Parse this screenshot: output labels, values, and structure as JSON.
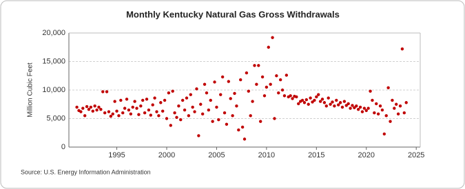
{
  "chart_data": {
    "type": "scatter",
    "title": "Monthly Kentucky Natural Gas Gross Withdrawals",
    "y_label": "Million Cubic Feet",
    "source": "Source: U.S. Energy Information Administration",
    "color": "#c00000",
    "grid": true,
    "xlim": [
      1990.2,
      2025.4
    ],
    "xticks": [
      1995,
      2000,
      2005,
      2010,
      2015,
      2020,
      2025
    ],
    "ylim": [
      0,
      20000
    ],
    "yticks": [
      0,
      {
        "value": 5000,
        "label": "5,000"
      },
      {
        "value": 10000,
        "label": "10,000"
      },
      {
        "value": 15000,
        "label": "15,000"
      },
      {
        "value": 20000,
        "label": "20,000"
      }
    ],
    "x": [
      1991.0,
      1991.2,
      1991.4,
      1991.6,
      1991.8,
      1992.0,
      1992.2,
      1992.4,
      1992.6,
      1992.8,
      1993.0,
      1993.2,
      1993.4,
      1993.6,
      1993.8,
      1994.0,
      1994.2,
      1994.4,
      1994.6,
      1994.8,
      1995.0,
      1995.2,
      1995.4,
      1995.6,
      1995.8,
      1996.0,
      1996.2,
      1996.4,
      1996.6,
      1996.8,
      1997.0,
      1997.2,
      1997.4,
      1997.6,
      1997.8,
      1998.0,
      1998.2,
      1998.4,
      1998.6,
      1998.8,
      1999.0,
      1999.2,
      1999.4,
      1999.6,
      1999.8,
      2000.0,
      2000.2,
      2000.4,
      2000.6,
      2000.8,
      2001.0,
      2001.2,
      2001.4,
      2001.6,
      2001.8,
      2002.0,
      2002.2,
      2002.4,
      2002.6,
      2002.8,
      2003.0,
      2003.2,
      2003.4,
      2003.6,
      2003.8,
      2004.0,
      2004.2,
      2004.4,
      2004.6,
      2004.8,
      2005.0,
      2005.2,
      2005.4,
      2005.6,
      2005.8,
      2006.0,
      2006.2,
      2006.4,
      2006.6,
      2006.8,
      2007.0,
      2007.2,
      2007.4,
      2007.6,
      2007.8,
      2008.0,
      2008.2,
      2008.4,
      2008.6,
      2008.8,
      2009.0,
      2009.2,
      2009.4,
      2009.6,
      2009.8,
      2010.0,
      2010.2,
      2010.4,
      2010.6,
      2010.8,
      2011.0,
      2011.2,
      2011.4,
      2011.6,
      2011.8,
      2012.0,
      2012.2,
      2012.4,
      2012.6,
      2012.8,
      2013.0,
      2013.2,
      2013.4,
      2013.6,
      2013.8,
      2014.0,
      2014.2,
      2014.4,
      2014.6,
      2014.8,
      2015.0,
      2015.2,
      2015.4,
      2015.6,
      2015.8,
      2016.0,
      2016.2,
      2016.4,
      2016.6,
      2016.8,
      2017.0,
      2017.2,
      2017.4,
      2017.6,
      2017.8,
      2018.0,
      2018.2,
      2018.4,
      2018.6,
      2018.8,
      2019.0,
      2019.2,
      2019.4,
      2019.6,
      2019.8,
      2020.0,
      2020.2,
      2020.4,
      2020.6,
      2020.8,
      2021.0,
      2021.2,
      2021.4,
      2021.6,
      2021.8,
      2022.0,
      2022.2,
      2022.4,
      2022.6,
      2022.8,
      2023.0,
      2023.2,
      2023.4,
      2023.6,
      2023.8,
      2024.0
    ],
    "values": [
      7000,
      6400,
      6200,
      6800,
      5500,
      7100,
      6600,
      7000,
      6300,
      7200,
      6500,
      7000,
      6600,
      9700,
      6000,
      9700,
      6200,
      5400,
      5800,
      8000,
      6300,
      5500,
      8200,
      6000,
      6800,
      8400,
      6500,
      5800,
      7000,
      8000,
      6800,
      5700,
      7200,
      8200,
      6000,
      8400,
      6500,
      5600,
      7400,
      8600,
      6200,
      5500,
      7800,
      6300,
      8200,
      5000,
      9500,
      3800,
      9800,
      6000,
      5200,
      7200,
      4800,
      8200,
      6500,
      8600,
      5500,
      9200,
      7000,
      6200,
      10200,
      2000,
      7500,
      5800,
      11000,
      9500,
      6500,
      8200,
      4500,
      11400,
      7000,
      4800,
      9200,
      12300,
      6000,
      4000,
      11500,
      8500,
      5500,
      9400,
      7200,
      3000,
      11800,
      3500,
      1400,
      13000,
      9800,
      5500,
      8000,
      14300,
      11000,
      14300,
      4500,
      12300,
      9000,
      10500,
      17500,
      11000,
      19200,
      5000,
      12500,
      9500,
      11800,
      10000,
      9000,
      12600,
      8800,
      9000,
      8500,
      8900,
      8800,
      7600,
      8000,
      8200,
      7800,
      8300,
      7500,
      8600,
      7900,
      8200,
      8800,
      9200,
      8000,
      8400,
      7800,
      7200,
      8600,
      7500,
      7900,
      7200,
      8200,
      7400,
      7800,
      7000,
      8000,
      7300,
      7600,
      6800,
      7300,
      6900,
      7200,
      6600,
      7000,
      6200,
      6800,
      6400,
      6800,
      9800,
      8200,
      6000,
      7600,
      5800,
      7200,
      6500,
      2300,
      5500,
      10400,
      4500,
      8200,
      6800,
      7500,
      5800,
      7200,
      17200,
      6000,
      7800
    ]
  }
}
